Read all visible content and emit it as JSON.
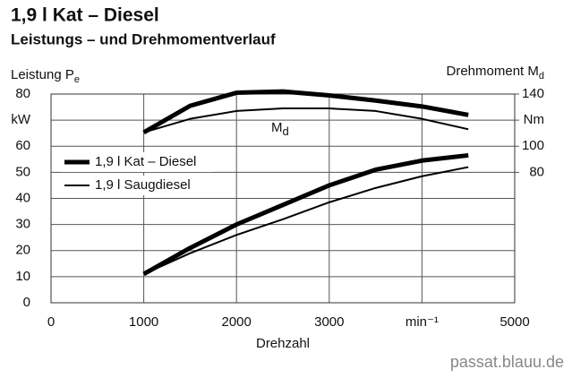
{
  "chart_data": {
    "type": "line",
    "title": "1,9 l Kat – Diesel",
    "subtitle": "Leistungs – und Drehmomentverlauf",
    "y_label": {
      "text": "Leistung P",
      "sub": "e"
    },
    "y2_label": {
      "text": "Drehmoment M",
      "sub": "d"
    },
    "x_label": "Drehzahl",
    "annotation": {
      "text": "M",
      "sub": "d"
    },
    "watermark": "passat.blauu.de",
    "x": [
      1000,
      1500,
      2000,
      2500,
      3000,
      3500,
      4000,
      4500
    ],
    "xlim": [
      0,
      5000
    ],
    "xticks": [
      0,
      1000,
      2000,
      3000,
      {
        "value": 4000,
        "label": "min⁻¹"
      },
      5000
    ],
    "ylim": [
      0,
      80
    ],
    "yticks": [
      0,
      10,
      20,
      30,
      40,
      50,
      60,
      {
        "value": 70,
        "label": "kW"
      },
      80
    ],
    "y2lim": [
      -20,
      140
    ],
    "y2ticks": [
      80,
      100,
      {
        "value": 120,
        "label": "Nm"
      },
      140
    ],
    "grid": true,
    "legend": "left",
    "series": [
      {
        "name": "1,9 l Kat – Diesel",
        "color": "#000000",
        "values": [
          11,
          21,
          30,
          37.5,
          45,
          51,
          54.5,
          56.5
        ]
      },
      {
        "name": "1,9 l Saugdiesel",
        "color": "#000000",
        "values": [
          11,
          19,
          26,
          32,
          38.5,
          44,
          48.5,
          52
        ]
      },
      {
        "color": "#000000",
        "axis": "y2",
        "values": [
          110.6,
          131,
          141,
          142,
          139,
          135,
          130.5,
          124
        ]
      },
      {
        "color": "#000000",
        "axis": "y2",
        "values": [
          110.6,
          121,
          127,
          129,
          129,
          127,
          121,
          113
        ]
      }
    ]
  }
}
